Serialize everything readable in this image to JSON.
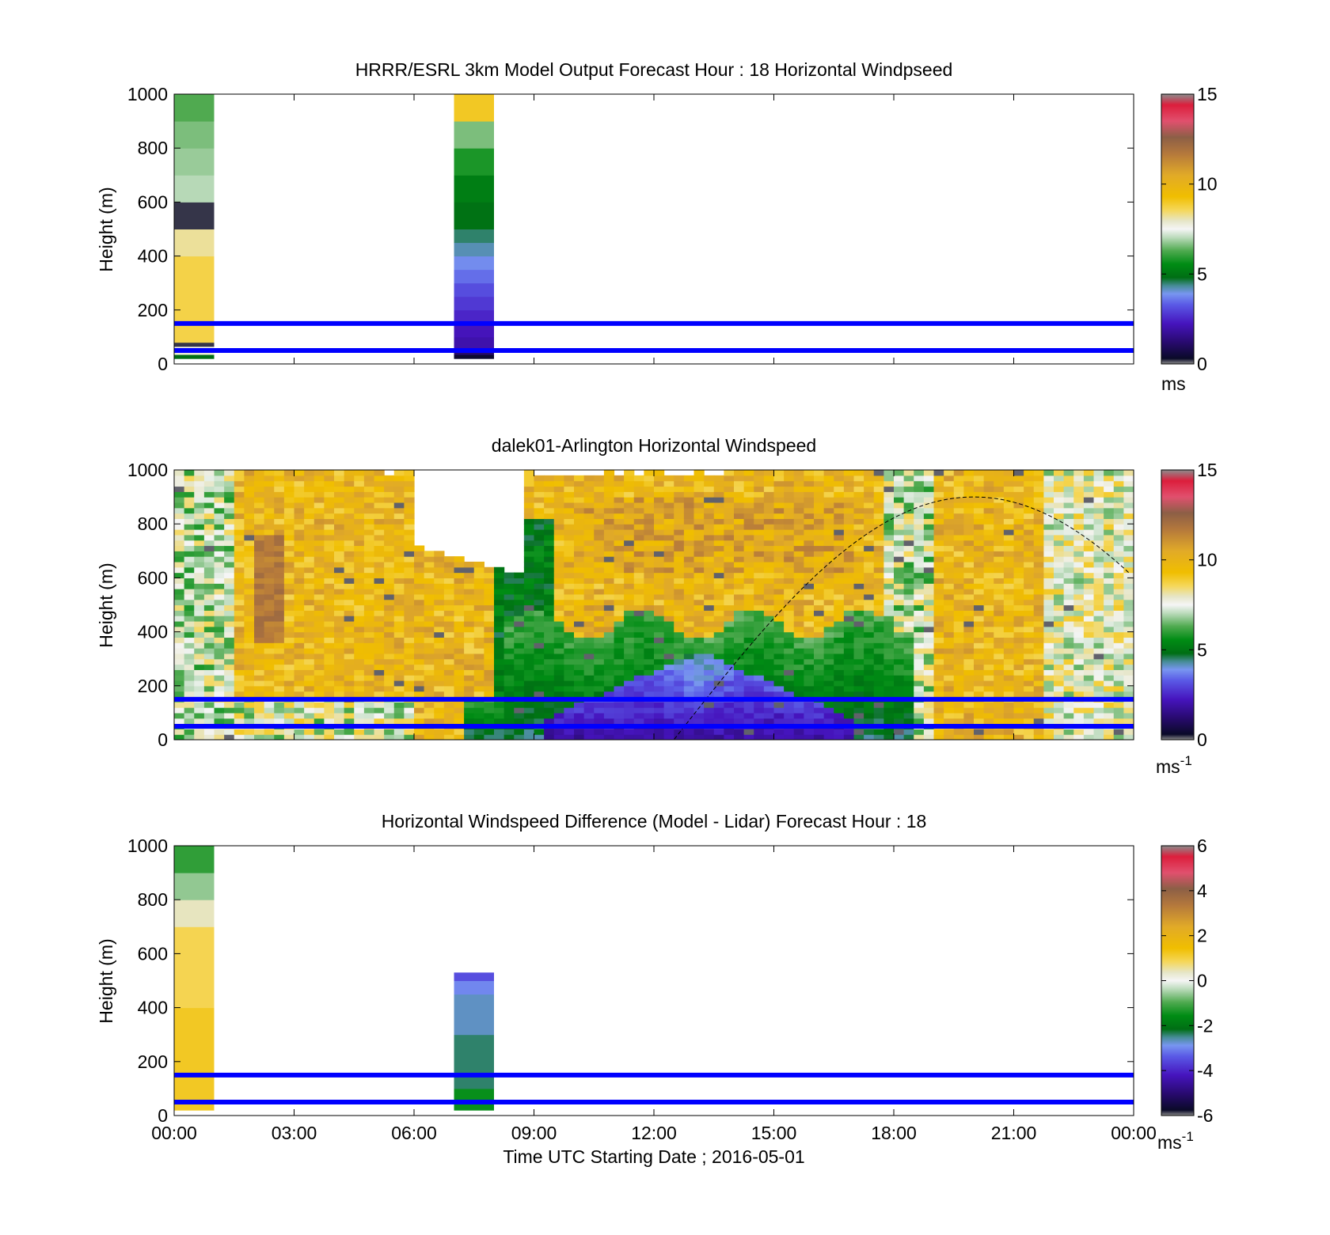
{
  "figure": {
    "xlabel": "Time UTC  Starting Date ; 2016-05-01",
    "xticks": [
      "00:00",
      "03:00",
      "06:00",
      "09:00",
      "12:00",
      "15:00",
      "18:00",
      "21:00",
      "00:00"
    ],
    "xlim_hours": [
      0,
      24
    ],
    "ylabel": "Height (m)",
    "yticks": [
      "0",
      "200",
      "400",
      "600",
      "800",
      "1000"
    ],
    "ylim": [
      0,
      1000
    ],
    "reference_lines_m": [
      50,
      150
    ],
    "reference_line_color": "#0000ff"
  },
  "chart_data": [
    {
      "type": "heatmap",
      "title": "HRRR/ESRL 3km Model Output   Forecast Hour : 18 Horizontal Windpseed",
      "ylabel": "Height (m)",
      "clim": [
        0,
        15
      ],
      "colorbar_ticks": [
        "0",
        "5",
        "10",
        "15"
      ],
      "colorbar_unit": "ms",
      "columns": [
        {
          "start_hour": 0,
          "end_hour": 1,
          "cells": [
            {
              "from": 20,
              "to": 35,
              "value": 4.8
            },
            {
              "from": 35,
              "to": 55,
              "value": 7.8
            },
            {
              "from": 55,
              "to": 65,
              "value": 7.6
            },
            {
              "from": 65,
              "to": 80,
              "value": 0.2
            },
            {
              "from": 80,
              "to": 400,
              "value": 8.7
            },
            {
              "from": 400,
              "to": 500,
              "value": 8.2
            },
            {
              "from": 500,
              "to": 600,
              "value": 0.2
            },
            {
              "from": 600,
              "to": 700,
              "value": 7.0
            },
            {
              "from": 700,
              "to": 800,
              "value": 6.8
            },
            {
              "from": 800,
              "to": 900,
              "value": 6.6
            },
            {
              "from": 900,
              "to": 1000,
              "value": 6.3
            }
          ]
        },
        {
          "start_hour": 7,
          "end_hour": 8,
          "cells": [
            {
              "from": 20,
              "to": 35,
              "value": 0.4
            },
            {
              "from": 35,
              "to": 55,
              "value": 1.2
            },
            {
              "from": 55,
              "to": 100,
              "value": 2.0
            },
            {
              "from": 100,
              "to": 150,
              "value": 2.2
            },
            {
              "from": 150,
              "to": 200,
              "value": 2.5
            },
            {
              "from": 200,
              "to": 250,
              "value": 2.8
            },
            {
              "from": 250,
              "to": 300,
              "value": 3.1
            },
            {
              "from": 300,
              "to": 350,
              "value": 3.5
            },
            {
              "from": 350,
              "to": 400,
              "value": 3.8
            },
            {
              "from": 400,
              "to": 450,
              "value": 4.2
            },
            {
              "from": 450,
              "to": 500,
              "value": 4.5
            },
            {
              "from": 500,
              "to": 600,
              "value": 4.9
            },
            {
              "from": 600,
              "to": 700,
              "value": 5.2
            },
            {
              "from": 700,
              "to": 800,
              "value": 5.8
            },
            {
              "from": 800,
              "to": 900,
              "value": 6.6
            },
            {
              "from": 900,
              "to": 1000,
              "value": 9.0
            }
          ]
        }
      ]
    },
    {
      "type": "heatmap",
      "title": "dalek01-Arlington  Horizontal Windspeed",
      "ylabel": "Height (m)",
      "clim": [
        0,
        15
      ],
      "colorbar_ticks": [
        "0",
        "5",
        "10",
        "15"
      ],
      "colorbar_unit": "ms",
      "colorbar_unit_exp": "-1",
      "time_step_hours": 0.25,
      "height_step_m": 20,
      "description_profile": "lidar wind speed curtain: ~8-10 m/s aloft, 1-3 m/s near-surface minimum 08:00-18:00",
      "dashed_curve": {
        "peak_hour": 20,
        "peak_height_m": 900,
        "min_height_m": 0,
        "period_hours": 15
      }
    },
    {
      "type": "heatmap",
      "title": "Horizontal Windspeed Difference (Model - Lidar) Forecast Hour : 18",
      "ylabel": "Height (m)",
      "clim": [
        -6,
        6
      ],
      "colorbar_ticks": [
        "-6",
        "-4",
        "-2",
        "0",
        "2",
        "4",
        "6"
      ],
      "colorbar_unit": "ms",
      "colorbar_unit_exp": "-1",
      "columns": [
        {
          "start_hour": 0,
          "end_hour": 1,
          "cells": [
            {
              "from": 20,
              "to": 400,
              "value": 1.2
            },
            {
              "from": 400,
              "to": 700,
              "value": 0.9
            },
            {
              "from": 700,
              "to": 800,
              "value": 0.4
            },
            {
              "from": 800,
              "to": 900,
              "value": -0.6
            },
            {
              "from": 900,
              "to": 1000,
              "value": -1.2
            }
          ]
        },
        {
          "start_hour": 7,
          "end_hour": 8,
          "cells": [
            {
              "from": 20,
              "to": 100,
              "value": -1.5
            },
            {
              "from": 100,
              "to": 300,
              "value": -2.4
            },
            {
              "from": 300,
              "to": 450,
              "value": -2.7
            },
            {
              "from": 450,
              "to": 500,
              "value": -3.0
            },
            {
              "from": 500,
              "to": 530,
              "value": -3.5
            }
          ]
        }
      ]
    }
  ]
}
